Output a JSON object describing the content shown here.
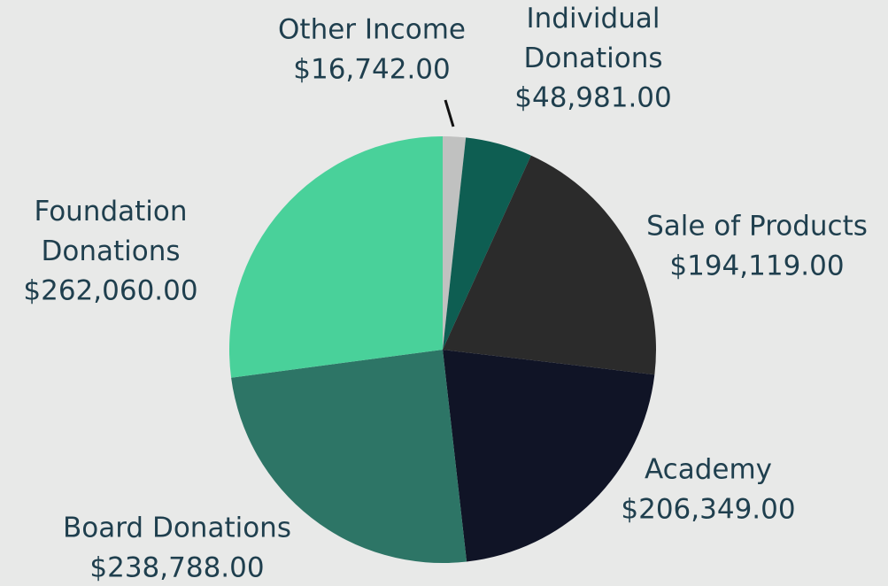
{
  "chart_data": {
    "type": "pie",
    "categories": [
      "Other Income",
      "Individual Donations",
      "Sale of Products",
      "Academy",
      "Board Donations",
      "Foundation Donations"
    ],
    "values": [
      16742,
      48981,
      194119,
      206349,
      238788,
      262060
    ],
    "value_labels": [
      "$16,742.00",
      "$48,981.00",
      "$194,119.00",
      "$206,349.00",
      "$238,788.00",
      "$262,060.00"
    ],
    "colors": [
      "#c0c1c0",
      "#0e5e52",
      "#2b2b2b",
      "#101426",
      "#2d7566",
      "#49d19a"
    ]
  }
}
